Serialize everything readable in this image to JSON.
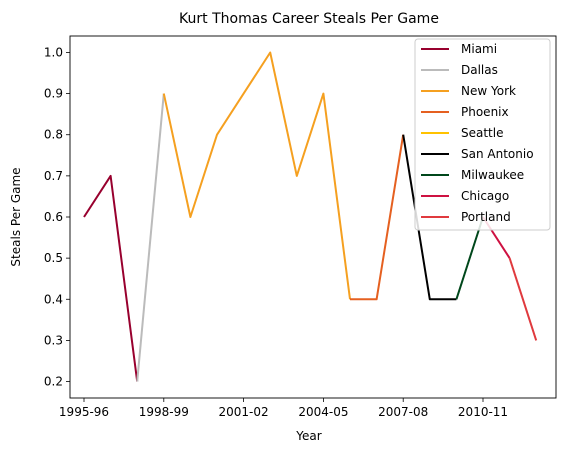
{
  "chart_data": {
    "type": "line",
    "title": "Kurt Thomas  Career Steals Per Game",
    "xlabel": "Year",
    "ylabel": "Steals Per Game",
    "xlim": [
      -1,
      18
    ],
    "ylim": [
      0.16,
      1.04
    ],
    "x_ticks": [
      {
        "index": 0,
        "label": "1995-96"
      },
      {
        "index": 3,
        "label": "1998-99"
      },
      {
        "index": 6,
        "label": "2001-02"
      },
      {
        "index": 9,
        "label": "2004-05"
      },
      {
        "index": 12,
        "label": "2007-08"
      },
      {
        "index": 15,
        "label": "2010-11"
      }
    ],
    "y_ticks": [
      "0.2",
      "0.3",
      "0.4",
      "0.5",
      "0.6",
      "0.7",
      "0.8",
      "0.9",
      "1.0"
    ],
    "grid": false,
    "legend_position": "top-right",
    "series": [
      {
        "name": "Miami",
        "color": "#98002e",
        "x": [
          0,
          1,
          2
        ],
        "values": [
          0.6,
          0.7,
          0.2
        ]
      },
      {
        "name": "Dallas",
        "color": "#bbbbbb",
        "x": [
          2,
          3
        ],
        "values": [
          0.2,
          0.9
        ]
      },
      {
        "name": "New York",
        "color": "#f5a020",
        "x": [
          3,
          4,
          5,
          6,
          7,
          8,
          9,
          10
        ],
        "values": [
          0.9,
          0.6,
          0.8,
          0.9,
          1.0,
          0.7,
          0.9,
          0.4
        ]
      },
      {
        "name": "Phoenix",
        "color": "#e56020",
        "x": [
          10,
          11,
          12
        ],
        "values": [
          0.4,
          0.4,
          0.8
        ]
      },
      {
        "name": "Seattle",
        "color": "#ffc200",
        "x": [],
        "values": []
      },
      {
        "name": "San Antonio",
        "color": "#000000",
        "x": [
          12,
          13,
          14
        ],
        "values": [
          0.8,
          0.4,
          0.4
        ]
      },
      {
        "name": "Milwaukee",
        "color": "#00471b",
        "x": [
          14,
          15
        ],
        "values": [
          0.4,
          0.6
        ]
      },
      {
        "name": "Chicago",
        "color": "#ce1141",
        "x": [
          15,
          16
        ],
        "values": [
          0.6,
          0.5
        ]
      },
      {
        "name": "Portland",
        "color": "#e03a3e",
        "x": [
          16,
          17
        ],
        "values": [
          0.5,
          0.3
        ]
      }
    ]
  }
}
